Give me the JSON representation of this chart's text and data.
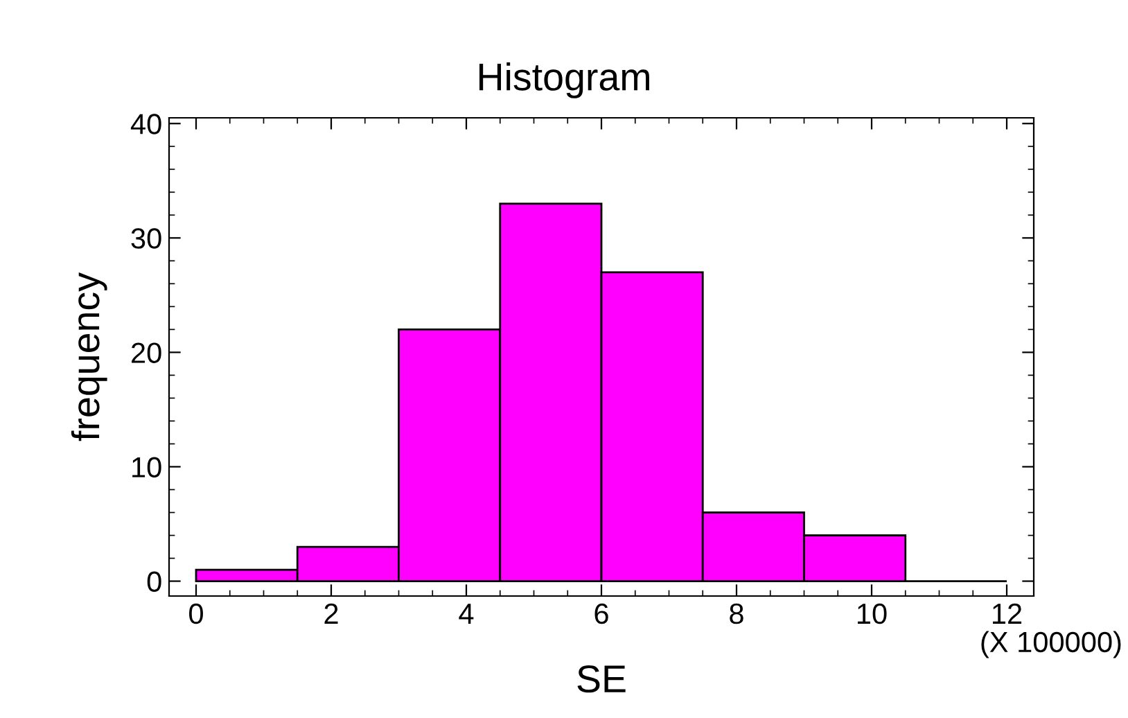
{
  "chart_data": {
    "type": "histogram",
    "title": "Histogram",
    "xlabel": "SE",
    "ylabel": "frequency",
    "bins": [
      0,
      1.5,
      3,
      4.5,
      6,
      7.5,
      9,
      10.5,
      12
    ],
    "values": [
      1,
      3,
      22,
      33,
      27,
      6,
      4,
      0
    ],
    "colors": [
      "#ff00ff",
      "#ff00ff",
      "#ff00ff",
      "#ff00ff",
      "#ff00ff",
      "#ff00ff",
      "#ff00ff",
      "#000000"
    ],
    "xlim": [
      -0.4,
      12.4
    ],
    "xticks": [
      0,
      2,
      4,
      6,
      8,
      10,
      12
    ],
    "ylim": [
      -1.3,
      40.5
    ],
    "yticks": [
      0,
      10,
      20,
      30,
      40
    ],
    "grid": false,
    "annotations": [
      "(X 100000)"
    ]
  }
}
